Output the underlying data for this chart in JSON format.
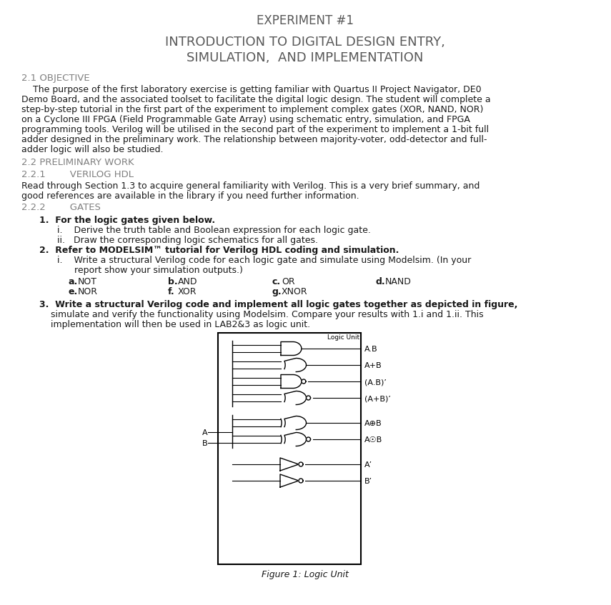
{
  "bg_color": "#ffffff",
  "title1": "EXPERIMENT #1",
  "title2": "INTRODUCTION TO DIGITAL DESIGN ENTRY,",
  "title3": "SIMULATION,  AND IMPLEMENTATION",
  "section21": "2.1 OBJECTIVE",
  "para1_indent": "    The purpose of the first laboratory exercise is getting familiar with Quartus II Project Navigator, DE0",
  "para1_lines": [
    "    The purpose of the first laboratory exercise is getting familiar with Quartus II Project Navigator, DE0",
    "Demo Board, and the associated toolset to facilitate the digital logic design. The student will complete a",
    "step-by-step tutorial in the first part of the experiment to implement complex gates (XOR, NAND, NOR)",
    "on a Cyclone III FPGA (Field Programmable Gate Array) using schematic entry, simulation, and FPGA",
    "programming tools. Verilog will be utilised in the second part of the experiment to implement a 1-bit full",
    "adder designed in the preliminary work. The relationship between majority-voter, odd-detector and full-",
    "adder logic will also be studied."
  ],
  "section22": "2.2 PRELIMINARY WORK",
  "section221": "2.2.1        VERILOG HDL",
  "para2_lines": [
    "Read through Section 1.3 to acquire general familiarity with Verilog. This is a very brief summary, and",
    "good references are available in the library if you need further information."
  ],
  "section222": "2.2.2        GATES",
  "list1_bold": "1.  For the logic gates given below.",
  "list1i": "i.    Derive the truth table and Boolean expression for each logic gate.",
  "list1ii": "ii.   Draw the corresponding logic schematics for all gates.",
  "list2_bold": "2.  Refer to MODELSIM™ tutorial for Verilog HDL coding and simulation.",
  "list2i_lines": [
    "i.    Write a structural Verilog code for each logic gate and simulate using Modelsim. (In your",
    "      report show your simulation outputs.)"
  ],
  "gates_a": "a.   NOT",
  "gates_b": "b.   AND",
  "gates_c": "c.   OR",
  "gates_d": "d.   NAND",
  "gates_e": "e.   NOR",
  "gates_f": "f.   XOR",
  "gates_g": "g.   XNOR",
  "list3_lines": [
    "3.  Write a structural Verilog code and implement all logic gates together as depicted in figure,",
    "    simulate and verify the functionality using Modelsim. Compare your results with 1.i and 1.ii. This",
    "    implementation will then be used in LAB2&3 as logic unit."
  ],
  "fig_caption": "Figure 1: Logic Unit",
  "output_labels": [
    "A.B",
    "A+B",
    "(A.B)’",
    "(A+B)’",
    "A⊕B",
    "A☉B",
    "A’",
    "B’"
  ],
  "heading_color": "#808080",
  "text_color": "#000000",
  "title_color": "#595959",
  "mono_color": "#595959"
}
